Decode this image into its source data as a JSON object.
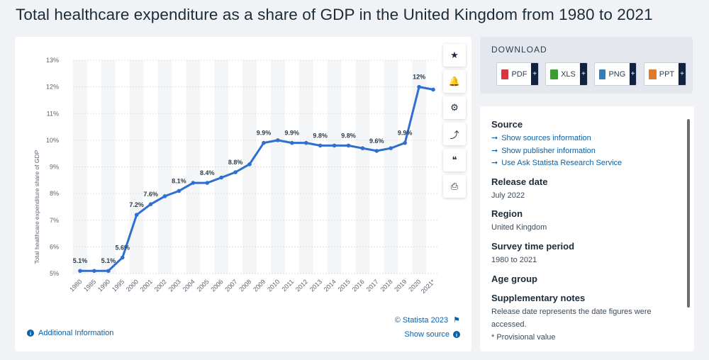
{
  "page_title": "Total healthcare expenditure as a share of GDP in the United Kingdom from 1980 to 2021",
  "chart_data": {
    "type": "line",
    "title": "Total healthcare expenditure as a share of GDP in the United Kingdom from 1980 to 2021",
    "xlabel": "",
    "ylabel": "Total healthcare expenditure share of GDP",
    "categories": [
      "1980",
      "1985",
      "1990",
      "1995",
      "2000",
      "2001",
      "2002",
      "2003",
      "2004",
      "2005",
      "2006",
      "2007",
      "2008",
      "2009",
      "2010",
      "2011",
      "2012",
      "2013",
      "2014",
      "2015",
      "2016",
      "2017",
      "2018",
      "2019",
      "2020",
      "2021*"
    ],
    "values": [
      5.1,
      5.1,
      5.1,
      5.6,
      7.2,
      7.6,
      7.9,
      8.1,
      8.4,
      8.4,
      8.6,
      8.8,
      9.1,
      9.9,
      10.0,
      9.9,
      9.9,
      9.8,
      9.8,
      9.8,
      9.7,
      9.6,
      9.7,
      9.9,
      12.0,
      11.9
    ],
    "data_labels": [
      "5.1%",
      "",
      "5.1%",
      "5.6%",
      "7.2%",
      "7.6%",
      "",
      "8.1%",
      "",
      "8.4%",
      "",
      "8.8%",
      "",
      "9.9%",
      "",
      "9.9%",
      "",
      "9.8%",
      "",
      "9.8%",
      "",
      "9.6%",
      "",
      "9.9%",
      "12%",
      ""
    ],
    "y_ticks": [
      "5%",
      "6%",
      "7%",
      "8%",
      "9%",
      "10%",
      "11%",
      "12%",
      "13%"
    ],
    "ylim": [
      5,
      13
    ],
    "grid": true,
    "line_color": "#2f6fd0"
  },
  "tools": [
    {
      "name": "star-icon",
      "glyph": "★"
    },
    {
      "name": "bell-icon",
      "glyph": "🔔"
    },
    {
      "name": "gear-icon",
      "glyph": "⚙"
    },
    {
      "name": "share-icon",
      "glyph": "⤴"
    },
    {
      "name": "quote-icon",
      "glyph": "❝"
    },
    {
      "name": "print-icon",
      "glyph": "⎙"
    }
  ],
  "footer": {
    "copyright": "© Statista 2023",
    "show_source": "Show source",
    "additional_info": "Additional Information"
  },
  "download": {
    "title": "DOWNLOAD",
    "buttons": [
      {
        "label": "PDF",
        "color": "#d9363e"
      },
      {
        "label": "XLS",
        "color": "#3d9b35"
      },
      {
        "label": "PNG",
        "color": "#2f7fbf"
      },
      {
        "label": "PPT",
        "color": "#e07a2b"
      }
    ]
  },
  "info": {
    "source_head": "Source",
    "source_links": [
      "Show sources information",
      "Show publisher information",
      "Use Ask Statista Research Service"
    ],
    "release_head": "Release date",
    "release_value": "July 2022",
    "region_head": "Region",
    "region_value": "United Kingdom",
    "survey_head": "Survey time period",
    "survey_value": "1980 to 2021",
    "age_head": "Age group",
    "supp_head": "Supplementary notes",
    "supp_text": "Release date represents the date figures were accessed.",
    "provisional": "* Provisional value"
  }
}
